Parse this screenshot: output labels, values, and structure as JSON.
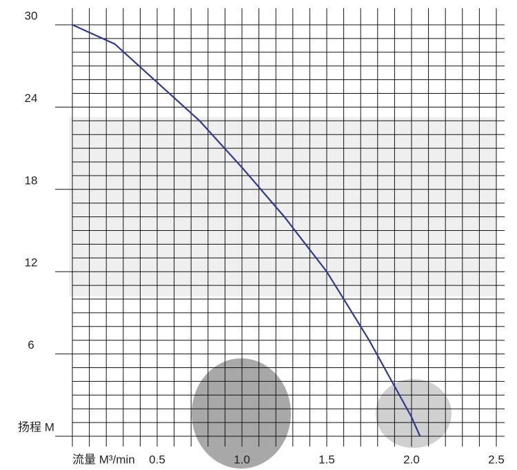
{
  "chart_data": {
    "type": "line",
    "x": [
      0,
      0.25,
      0.5,
      0.75,
      1.0,
      1.25,
      1.5,
      1.75,
      2.0,
      2.05
    ],
    "series": [
      {
        "color": "#2b3990",
        "values": [
          30,
          28.6,
          25.8,
          23,
          19.6,
          16,
          12,
          7,
          1.4,
          0
        ]
      }
    ],
    "xlim": [
      0,
      2.5
    ],
    "xticks": [
      {
        "value": 0,
        "label": "流量 M³/min"
      },
      0.5,
      {
        "value": 1,
        "label": "1.0"
      },
      1.5,
      {
        "value": 2,
        "label": "2.0"
      },
      2.5
    ],
    "ylim": [
      0,
      30
    ],
    "yticks": [
      {
        "value": 0,
        "label": "扬程 M"
      },
      6,
      12,
      18,
      24,
      30
    ],
    "grid": true
  }
}
